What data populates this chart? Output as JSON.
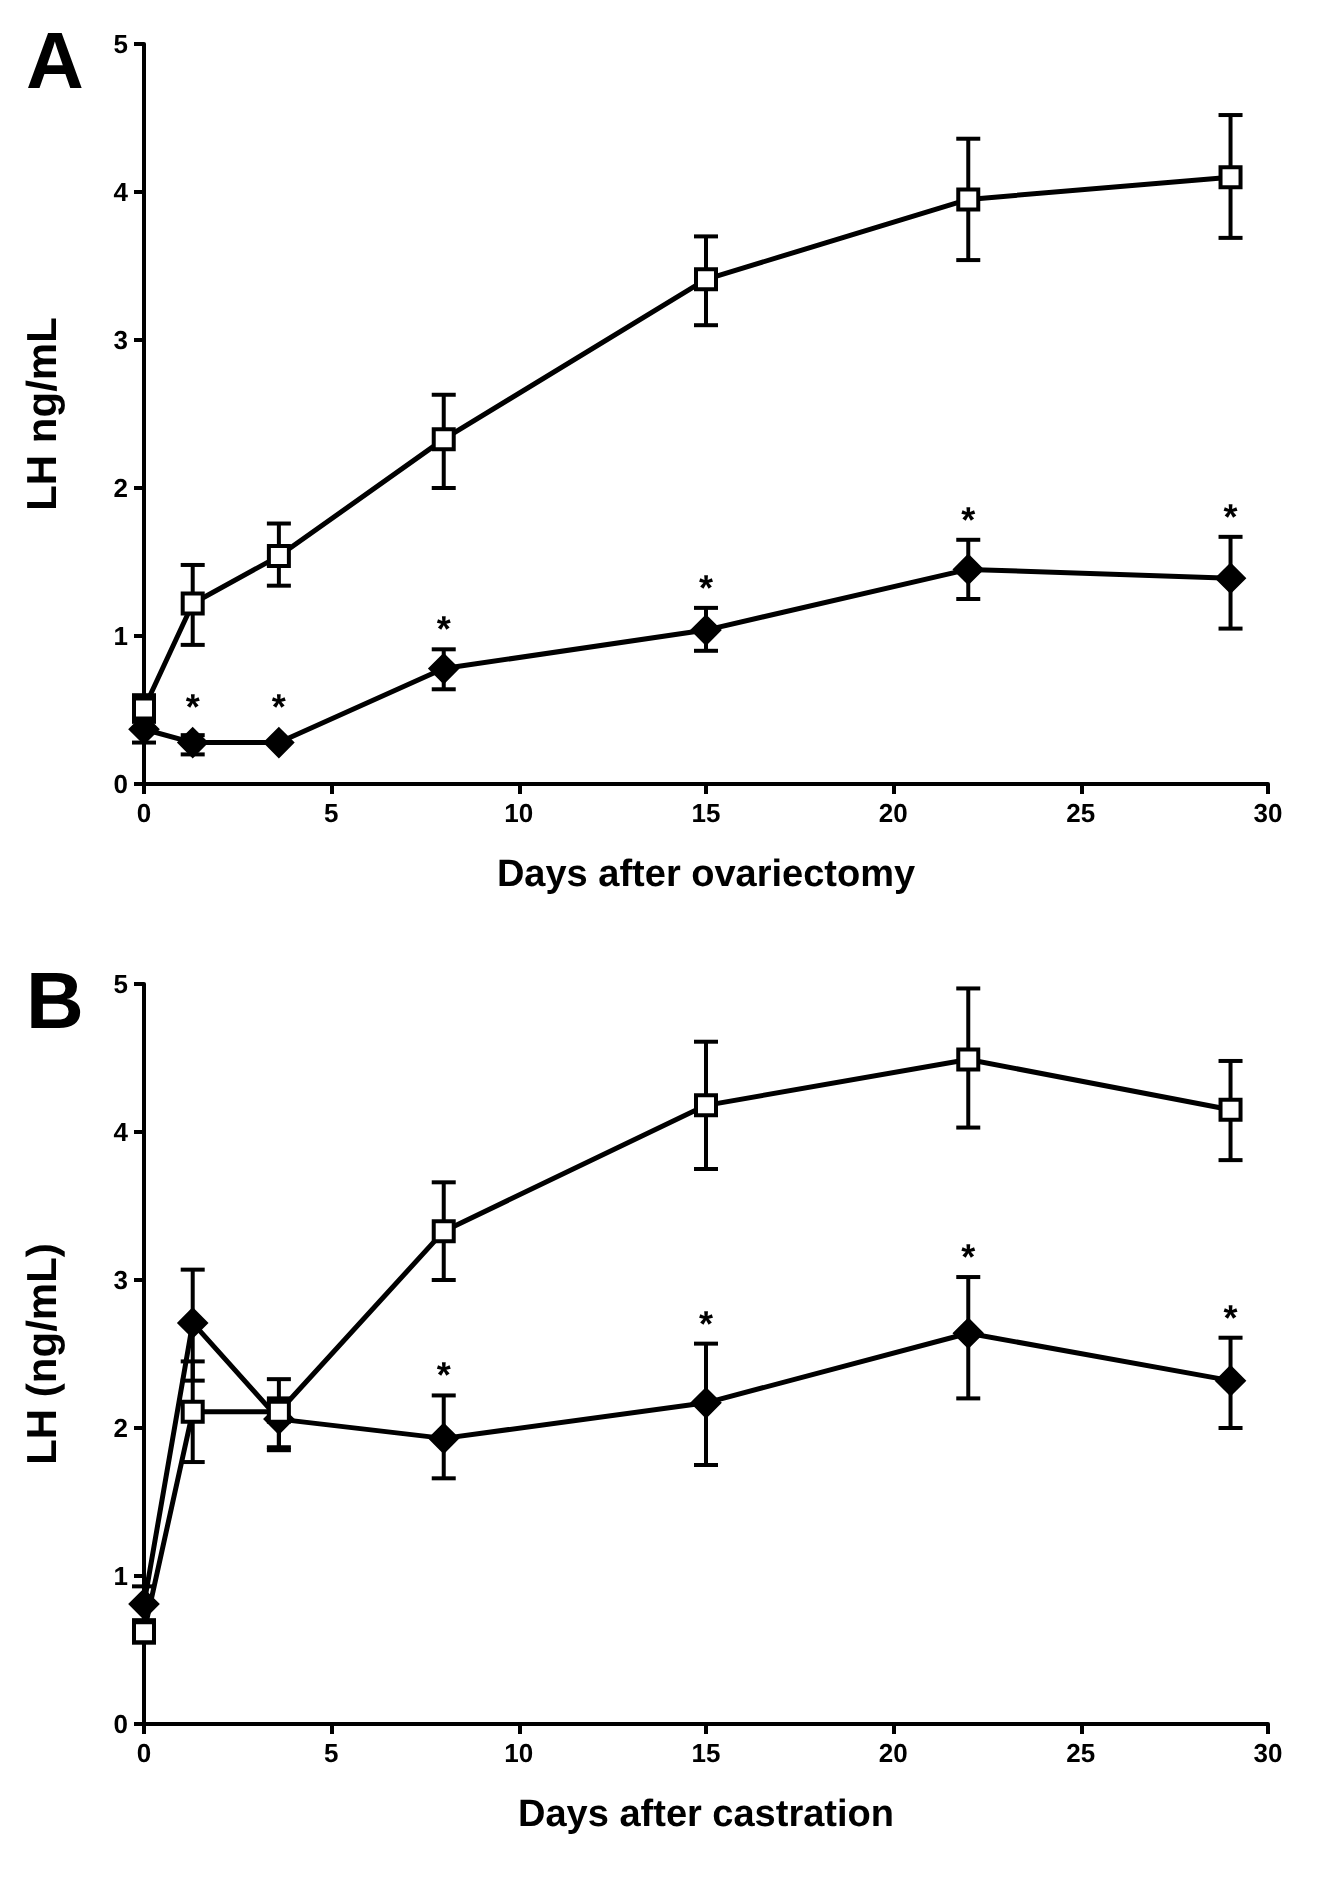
{
  "chart_data": [
    {
      "type": "line",
      "title": "A",
      "xlabel": "Days after ovariectomy",
      "ylabel": "LH ng/mL",
      "xlim": [
        0,
        30
      ],
      "xticks": [
        0,
        5,
        10,
        15,
        20,
        25,
        30
      ],
      "ylim": [
        0,
        5
      ],
      "yticks": [
        0,
        1,
        2,
        3,
        4,
        5
      ],
      "grid": false,
      "line_style": "solid",
      "series": [
        {
          "color": "#000000",
          "marker": "square",
          "x": [
            0,
            1.3,
            3.6,
            8,
            15,
            22,
            29
          ],
          "values": [
            0.51,
            1.22,
            1.54,
            2.33,
            3.41,
            3.95,
            4.1
          ],
          "errors": [
            [
              0.42,
              0.6
            ],
            [
              0.94,
              1.48
            ],
            [
              1.34,
              1.76
            ],
            [
              2.0,
              2.63
            ],
            [
              3.1,
              3.7
            ],
            [
              3.54,
              4.36
            ],
            [
              3.69,
              4.52
            ]
          ]
        },
        {
          "color": "#000000",
          "marker": "diamond",
          "x": [
            0,
            1.3,
            3.6,
            8,
            15,
            22,
            29
          ],
          "values": [
            0.37,
            0.28,
            0.28,
            0.78,
            1.04,
            1.45,
            1.39
          ],
          "errors": [
            [
              0.28,
              0.45
            ],
            [
              0.2,
              0.33
            ],
            null,
            [
              0.64,
              0.91
            ],
            [
              0.9,
              1.19
            ],
            [
              1.25,
              1.65
            ],
            [
              1.05,
              1.67
            ]
          ]
        }
      ],
      "annotations": [
        {
          "text": "*",
          "x": 1.3,
          "y": 0.28
        },
        {
          "text": "*",
          "x": 3.6,
          "y": 0.28
        },
        {
          "text": "*",
          "x": 8,
          "y": 0.78
        },
        {
          "text": "*",
          "x": 15,
          "y": 1.04
        },
        {
          "text": "*",
          "x": 22,
          "y": 1.45
        },
        {
          "text": "*",
          "x": 29,
          "y": 1.39
        }
      ]
    },
    {
      "type": "line",
      "title": "B",
      "xlabel": "Days after castration",
      "ylabel": "LH (ng/mL)",
      "xlim": [
        0,
        30
      ],
      "xticks": [
        0,
        5,
        10,
        15,
        20,
        25,
        30
      ],
      "ylim": [
        0,
        5
      ],
      "yticks": [
        0,
        1,
        2,
        3,
        4,
        5
      ],
      "grid": false,
      "line_style": "solid",
      "series": [
        {
          "color": "#000000",
          "marker": "square",
          "x": [
            0,
            1.3,
            3.6,
            8,
            15,
            22,
            29
          ],
          "values": [
            0.62,
            2.11,
            2.11,
            3.33,
            4.18,
            4.49,
            4.15
          ],
          "errors": [
            [
              0.55,
              0.7
            ],
            [
              1.77,
              2.45
            ],
            [
              1.87,
              2.2
            ],
            [
              3.0,
              3.66
            ],
            [
              3.75,
              4.61
            ],
            [
              4.03,
              4.97
            ],
            [
              3.81,
              4.48
            ]
          ]
        },
        {
          "color": "#000000",
          "marker": "diamond",
          "x": [
            0,
            1.3,
            3.6,
            8,
            15,
            22,
            29
          ],
          "values": [
            0.81,
            2.71,
            2.06,
            1.93,
            2.17,
            2.64,
            2.32
          ],
          "errors": [
            [
              0.7,
              0.93
            ],
            [
              2.32,
              3.07
            ],
            [
              1.85,
              2.33
            ],
            [
              1.66,
              2.22
            ],
            [
              1.75,
              2.57
            ],
            [
              2.2,
              3.02
            ],
            [
              2.0,
              2.61
            ]
          ]
        }
      ],
      "annotations": [
        {
          "text": "*",
          "x": 8,
          "y": 1.93
        },
        {
          "text": "*",
          "x": 15,
          "y": 2.17
        },
        {
          "text": "*",
          "x": 22,
          "y": 2.64
        },
        {
          "text": "*",
          "x": 29,
          "y": 2.32
        }
      ]
    }
  ]
}
